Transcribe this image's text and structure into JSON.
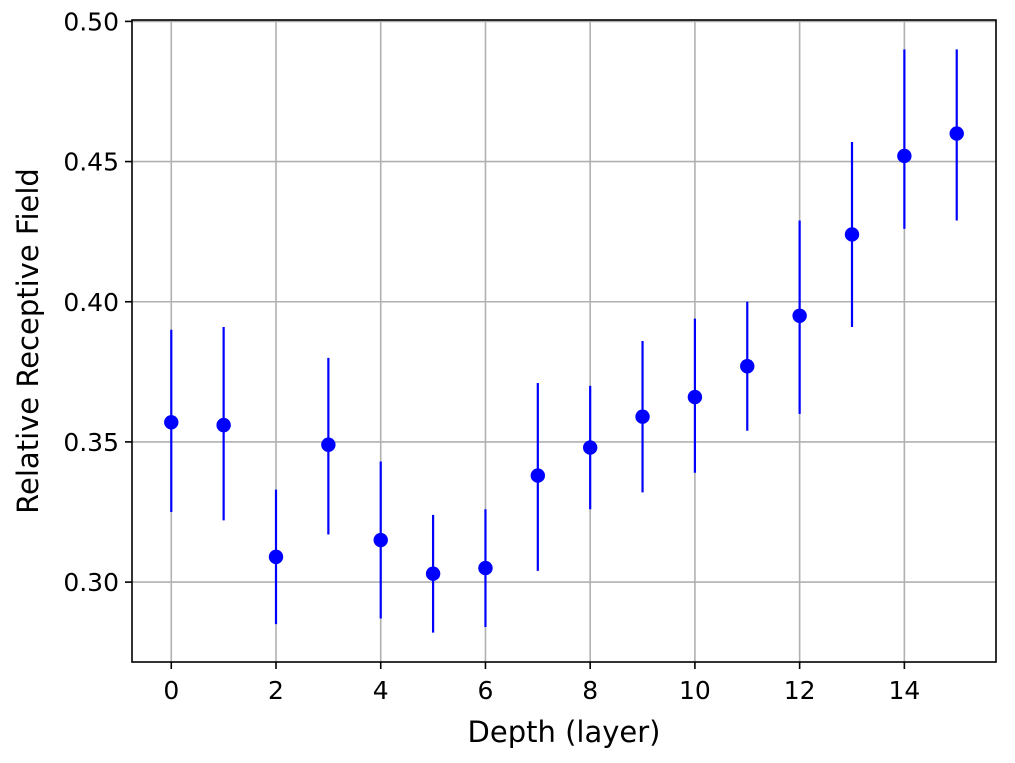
{
  "chart_data": {
    "type": "scatter",
    "title": "",
    "xlabel": "Depth (layer)",
    "ylabel": "Relative Receptive Field",
    "xlim": [
      -0.75,
      15.75
    ],
    "ylim": [
      0.2715,
      0.5005
    ],
    "xticks": [
      0,
      2,
      4,
      6,
      8,
      10,
      12,
      14
    ],
    "xtick_labels": [
      "0",
      "2",
      "4",
      "6",
      "8",
      "10",
      "12",
      "14"
    ],
    "yticks": [
      0.3,
      0.35,
      0.4,
      0.45,
      0.5
    ],
    "ytick_labels": [
      "0.30",
      "0.35",
      "0.40",
      "0.45",
      "0.50"
    ],
    "grid": true,
    "legend": "none",
    "marker_color": "#0000ff",
    "series": [
      {
        "x": [
          0,
          1,
          2,
          3,
          4,
          5,
          6,
          7,
          8,
          9,
          10,
          11,
          12,
          13,
          14,
          15
        ],
        "y": [
          0.357,
          0.356,
          0.309,
          0.349,
          0.315,
          0.303,
          0.305,
          0.338,
          0.348,
          0.359,
          0.366,
          0.377,
          0.395,
          0.424,
          0.452,
          0.46
        ],
        "err_low": [
          0.325,
          0.322,
          0.285,
          0.317,
          0.287,
          0.282,
          0.284,
          0.304,
          0.326,
          0.332,
          0.339,
          0.354,
          0.36,
          0.391,
          0.426,
          0.429
        ],
        "err_high": [
          0.39,
          0.391,
          0.333,
          0.38,
          0.343,
          0.324,
          0.326,
          0.371,
          0.37,
          0.386,
          0.394,
          0.4,
          0.429,
          0.457,
          0.49,
          0.49
        ]
      }
    ]
  }
}
